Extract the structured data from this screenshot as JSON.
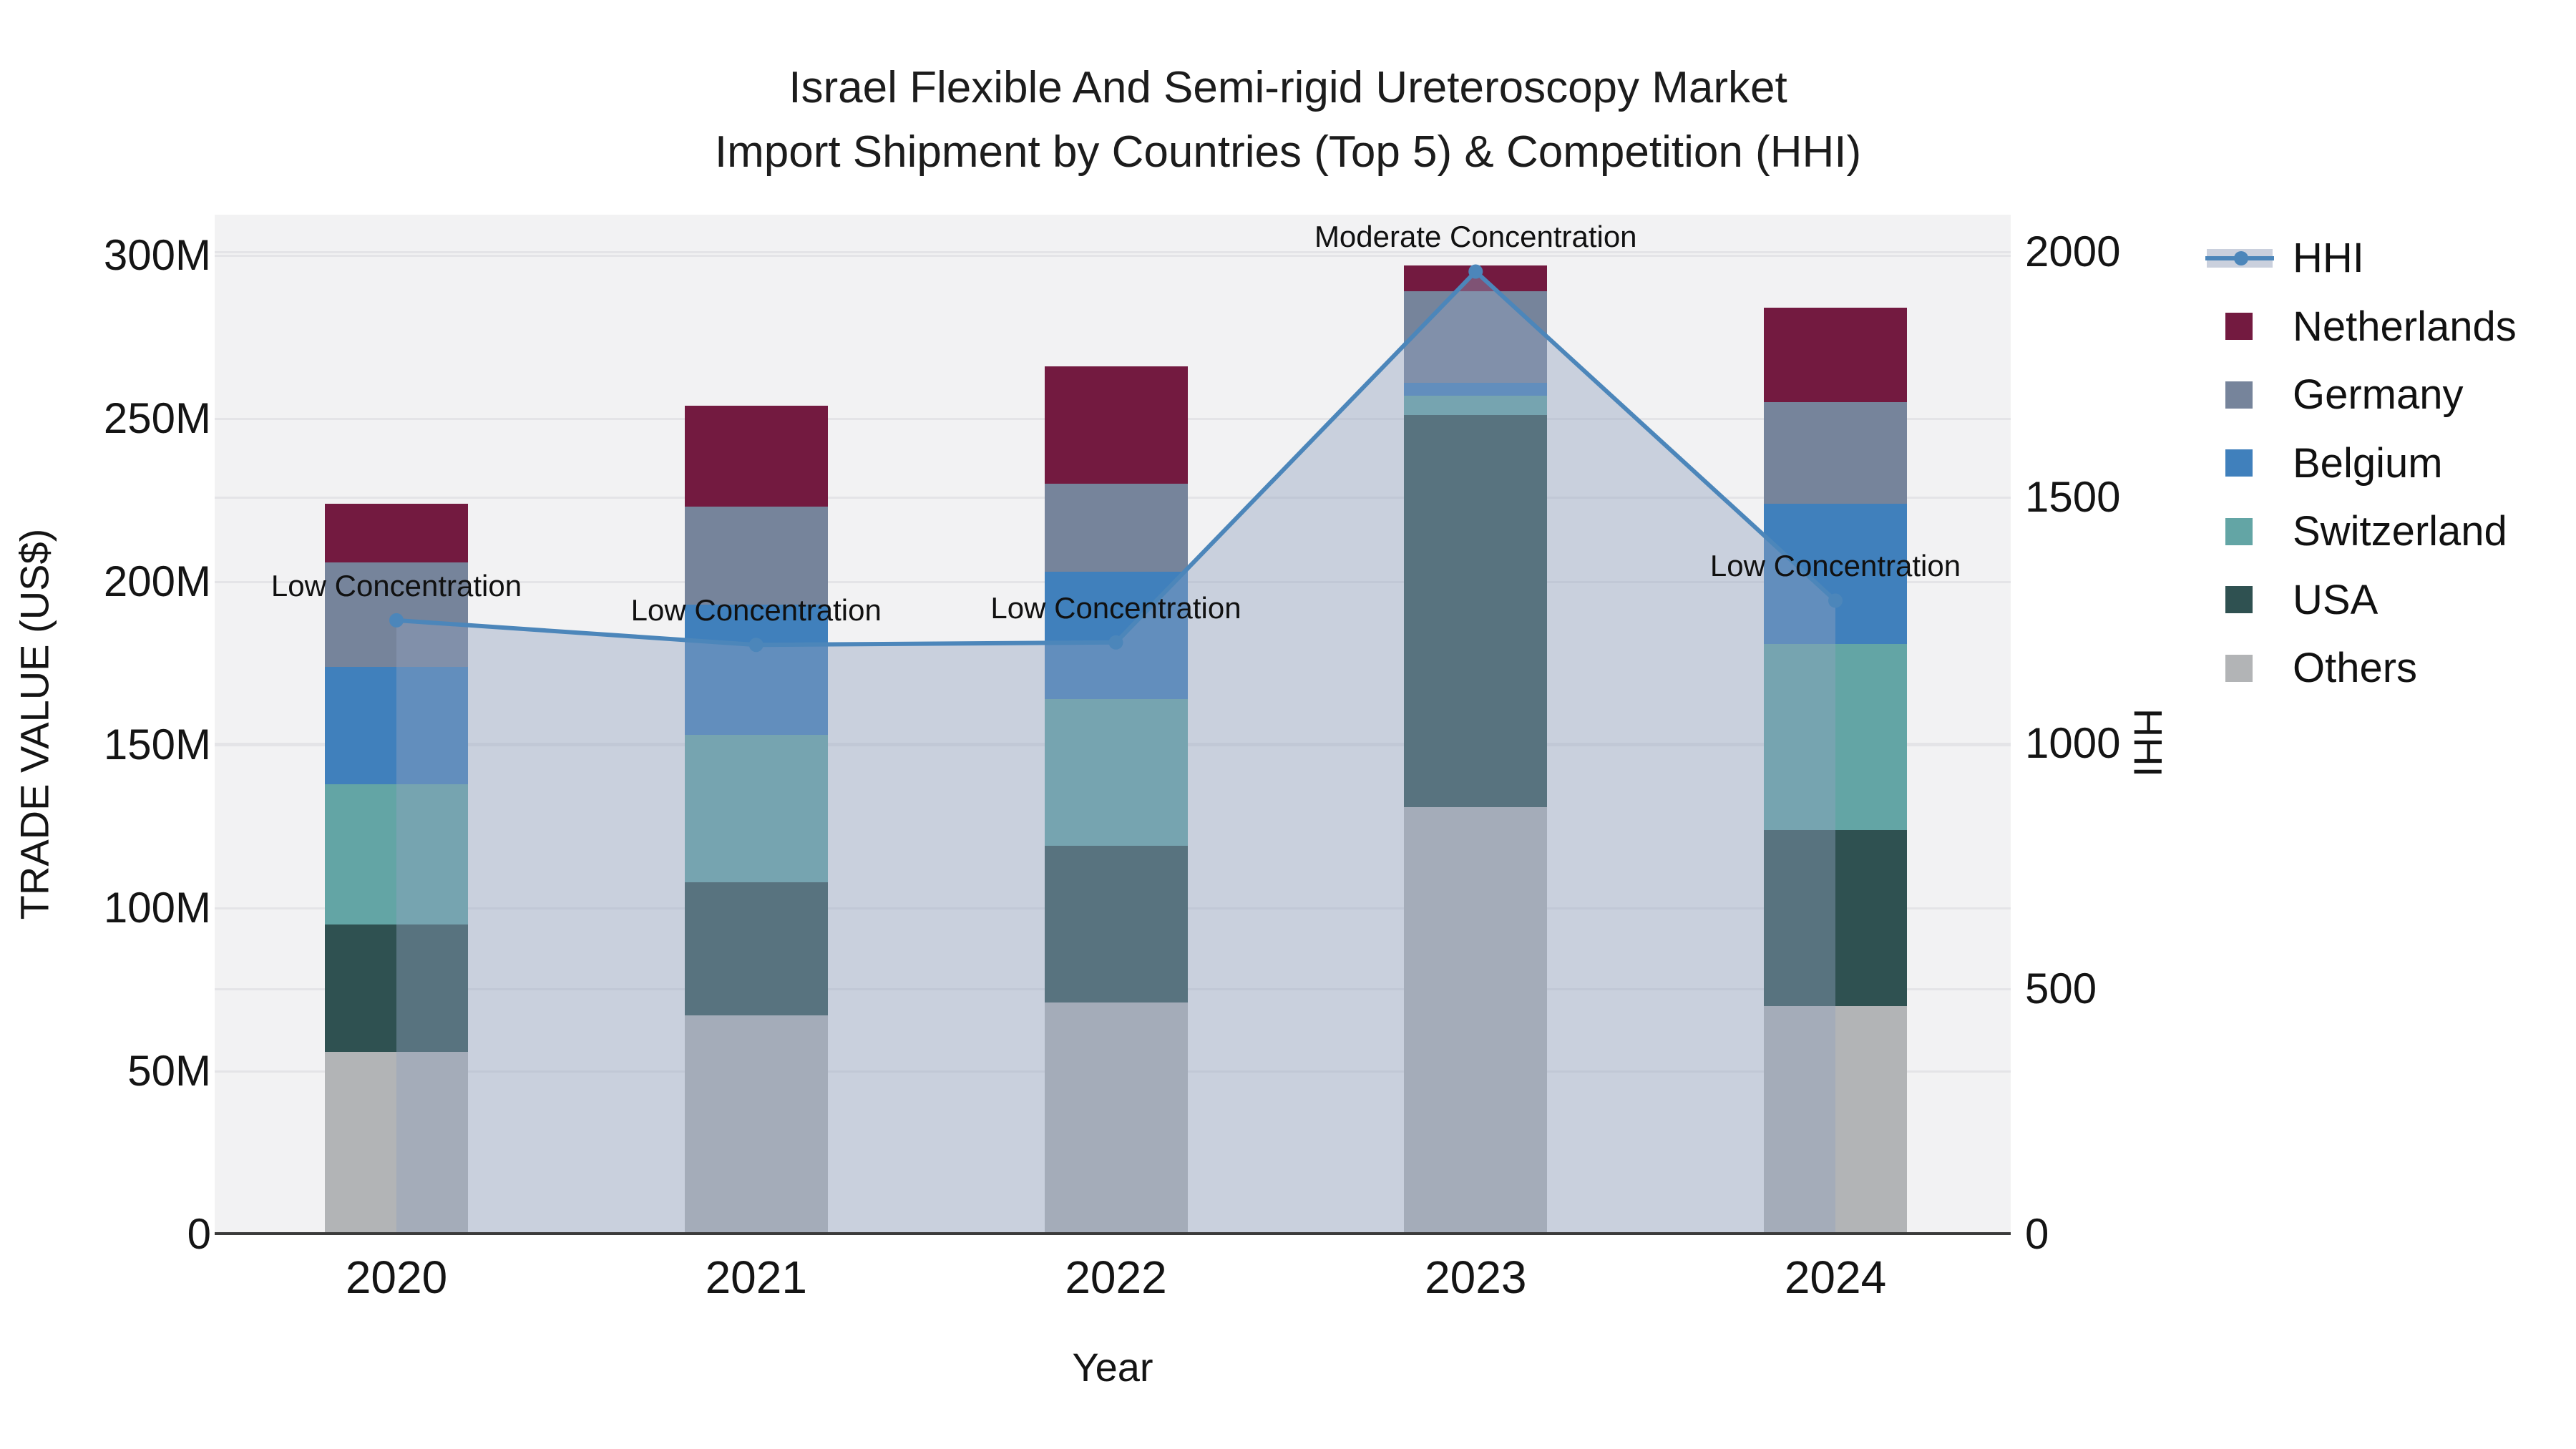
{
  "title": {
    "line1": "Israel Flexible And Semi-rigid Ureteroscopy Market",
    "line2": "Import Shipment by Countries (Top 5) & Competition (HHI)"
  },
  "chart_data": {
    "type": "bar",
    "subtype": "stacked-bars-with-line-overlay",
    "categories": [
      "2020",
      "2021",
      "2022",
      "2023",
      "2024"
    ],
    "series": [
      {
        "name": "Others",
        "color": "#b2b4b6",
        "values": [
          56,
          67,
          71,
          131,
          70
        ]
      },
      {
        "name": "USA",
        "color": "#2f5151",
        "values": [
          39,
          41,
          48,
          120,
          54
        ]
      },
      {
        "name": "Switzerland",
        "color": "#63a5a5",
        "values": [
          43,
          45,
          45,
          6,
          57
        ]
      },
      {
        "name": "Belgium",
        "color": "#4080bc",
        "values": [
          36,
          40,
          39,
          4,
          43
        ]
      },
      {
        "name": "Germany",
        "color": "#76849b",
        "values": [
          32,
          30,
          27,
          28,
          31
        ]
      },
      {
        "name": "Netherlands",
        "color": "#731a40",
        "values": [
          18,
          31,
          36,
          8,
          29
        ]
      }
    ],
    "bar_totals_musd": [
      224,
      254,
      266,
      297,
      284
    ],
    "hhi": {
      "name": "HHI",
      "values": [
        1250,
        1200,
        1205,
        1960,
        1290
      ],
      "line_color": "#4c86ba",
      "area_fill": "rgba(146,162,190,0.42)",
      "legend_band_color": "#cad0dd"
    },
    "annotations": [
      {
        "category": "2020",
        "text": "Low Concentration"
      },
      {
        "category": "2021",
        "text": "Low Concentration"
      },
      {
        "category": "2022",
        "text": "Low Concentration"
      },
      {
        "category": "2023",
        "text": "Moderate Concentration"
      },
      {
        "category": "2024",
        "text": "Low Concentration"
      }
    ],
    "y_left": {
      "title": "TRADE VALUE (US$)",
      "ticks": [
        {
          "label": "0",
          "value": 0
        },
        {
          "label": "50M",
          "value": 50
        },
        {
          "label": "100M",
          "value": 100
        },
        {
          "label": "150M",
          "value": 150
        },
        {
          "label": "200M",
          "value": 200
        },
        {
          "label": "250M",
          "value": 250
        },
        {
          "label": "300M",
          "value": 300
        }
      ],
      "range": [
        0,
        300
      ]
    },
    "y_right": {
      "title": "HHI",
      "ticks": [
        {
          "label": "0",
          "value": 0
        },
        {
          "label": "500",
          "value": 500
        },
        {
          "label": "1000",
          "value": 1000
        },
        {
          "label": "1500",
          "value": 1500
        },
        {
          "label": "2000",
          "value": 2000
        }
      ],
      "range": [
        0,
        2000
      ]
    },
    "x_axis": {
      "title": "Year"
    },
    "legend": [
      {
        "label": "HHI",
        "type": "line"
      },
      {
        "label": "Netherlands",
        "type": "swatch",
        "color": "#731a40"
      },
      {
        "label": "Germany",
        "type": "swatch",
        "color": "#76849b"
      },
      {
        "label": "Belgium",
        "type": "swatch",
        "color": "#4080bc"
      },
      {
        "label": "Switzerland",
        "type": "swatch",
        "color": "#63a5a5"
      },
      {
        "label": "USA",
        "type": "swatch",
        "color": "#2f5151"
      },
      {
        "label": "Others",
        "type": "swatch",
        "color": "#b2b4b6"
      }
    ],
    "layout_hints": {
      "plot_background": "#f2f2f3",
      "gridlines": "on",
      "legend_position": "right-outside",
      "axis_line_color": "#3b3b3b"
    }
  }
}
